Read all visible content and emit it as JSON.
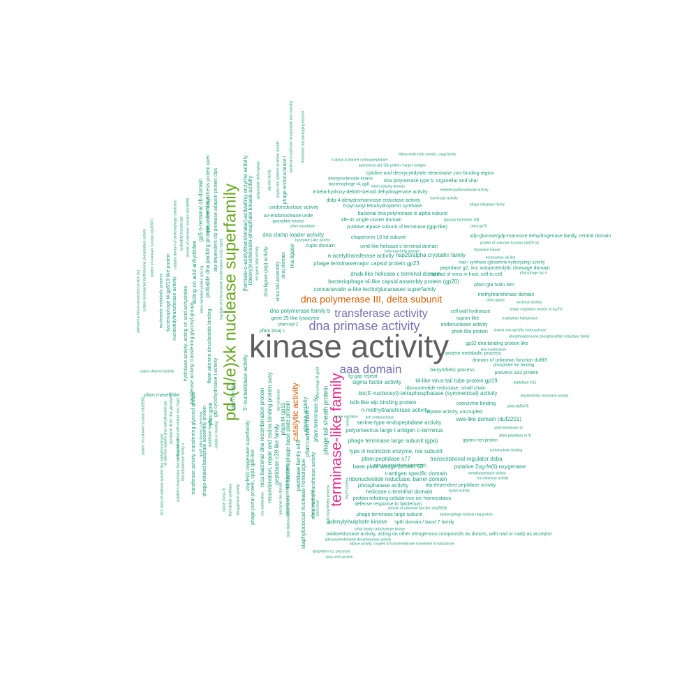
{
  "colors": {
    "background": "#ffffff",
    "gray": "#5f5f5f",
    "green": "#1b9e77",
    "olive": "#66a61e",
    "orange": "#d95f02",
    "purple": "#7570b3",
    "magenta": "#e7298a"
  },
  "words": [
    {
      "text": "kinase activity",
      "color": "gray"
    },
    {
      "text": "pd-(d/e)xk nuclease superfamily",
      "color": "olive"
    },
    {
      "text": "terminase-like family",
      "color": "magenta"
    },
    {
      "text": "dna primase activity",
      "color": "purple"
    },
    {
      "text": "transferase activity",
      "color": "purple"
    },
    {
      "text": "aaa domain",
      "color": "purple"
    },
    {
      "text": "dna polymerase III, delta subunit",
      "color": "orange"
    },
    {
      "text": "catalytic activity",
      "color": "orange"
    },
    {
      "text": "ribbon-helix-helix protein, copg family",
      "color": "green"
    },
    {
      "text": "d-alanyl-d-alanine carboxypeptidase",
      "color": "green"
    },
    {
      "text": "adenovirus eb1 55k protein / large t-antigen",
      "color": "green"
    },
    {
      "text": "cytidine and deoxycytidylate deaminase zinc-binding region",
      "color": "green"
    },
    {
      "text": "deoxynucleoside kinase",
      "color": "green"
    },
    {
      "text": "dna polymerase type b, organellar and viral",
      "color": "green"
    },
    {
      "text": "intein splicing domain",
      "color": "green"
    },
    {
      "text": "bacteriophage t4, gp8",
      "color": "green"
    },
    {
      "text": "3-beta-hydroxy-delta5-steroid dehydrogenase activity",
      "color": "green"
    },
    {
      "text": "endodeoxyribonuclease activity",
      "color": "green"
    },
    {
      "text": "dtdp-4-dehydrorhamnose reductase activity",
      "color": "green"
    },
    {
      "text": "isomerase activity",
      "color": "green"
    },
    {
      "text": "6-pyruvoyl tetrahydropterin synthase",
      "color": "green"
    },
    {
      "text": "phage integrase family",
      "color": "green"
    },
    {
      "text": "oxidoreductase activity",
      "color": "green"
    },
    {
      "text": "bacterial dna polymerase iii alpha subunit",
      "color": "green"
    },
    {
      "text": "uv-endonuclease uvde",
      "color": "green"
    },
    {
      "text": "4fe-4s single cluster domain",
      "color": "green"
    },
    {
      "text": "glycosyl hydrolase 108",
      "color": "green"
    },
    {
      "text": "guanylate kinase",
      "color": "green"
    },
    {
      "text": "pfam:muraldase",
      "color": "green"
    },
    {
      "text": "putative atpase subunit of terminase (gpp-like)",
      "color": "green"
    },
    {
      "text": "pfam:gp70",
      "color": "green"
    },
    {
      "text": "dna clamp loader activity",
      "color": "green"
    },
    {
      "text": "chaperonin 10 kd subunit",
      "color": "green"
    },
    {
      "text": "udp-glucose/gdp-mannose dehydrogenase family, central domain",
      "color": "green"
    },
    {
      "text": "baseplate j-like protein",
      "color": "green"
    },
    {
      "text": "protein of unknown function (duf2514)",
      "color": "green"
    },
    {
      "text": "cupin domain",
      "color": "green"
    },
    {
      "text": "uvrd-like helicase c-terminal domain",
      "color": "green"
    },
    {
      "text": "thymidine kinase",
      "color": "green"
    },
    {
      "text": "helix-turn-helix domain",
      "color": "green"
    },
    {
      "text": "n-acetyltransferase activity",
      "color": "green"
    },
    {
      "text": "hsp20/alpha crystallin family",
      "color": "green"
    },
    {
      "text": "herpesvirus ul6 like",
      "color": "green"
    },
    {
      "text": "phage terminasemajor capsid protein gp23",
      "color": "green"
    },
    {
      "text": "nad+ synthase (glutamine-hydrolyzing) activity",
      "color": "green"
    },
    {
      "text": "peptidase g2, imc autoproteolytic cleavage domain",
      "color": "green"
    },
    {
      "text": "dnab-like helicase c terminal domain",
      "color": "green"
    },
    {
      "text": "spread of virus in host, cell to cell",
      "color": "green"
    },
    {
      "text": "pfam:phage tac 4",
      "color": "green"
    },
    {
      "text": "bacteriophage t4-like capsid assembly protein (gp20)",
      "color": "green"
    },
    {
      "text": "pfam:gta holin 3tm",
      "color": "green"
    },
    {
      "text": "concanavalin a-like lectin/glucanases superfamily",
      "color": "green"
    },
    {
      "text": "methyltransferase domain",
      "color": "green"
    },
    {
      "text": "pfam:apase",
      "color": "green"
    },
    {
      "text": "nuclease activity",
      "color": "green"
    },
    {
      "text": "cell wall hydrolase",
      "color": "green"
    },
    {
      "text": "phage regulatory protein cii (cp76)",
      "color": "green"
    },
    {
      "text": "dna polymerase family b",
      "color": "green"
    },
    {
      "text": "toprim-like",
      "color": "green"
    },
    {
      "text": "tryptophan halogenase",
      "color": "green"
    },
    {
      "text": "gene 25-like lysozyme",
      "color": "green"
    },
    {
      "text": "endonuclease activity",
      "color": "green"
    },
    {
      "text": "pfam:wyl 2",
      "color": "green"
    },
    {
      "text": "phoh-like protein",
      "color": "green"
    },
    {
      "text": "dnama non-specific endonuclease",
      "color": "green"
    },
    {
      "text": "pfam:dnaj c",
      "color": "green"
    },
    {
      "text": "phosphoadenosine phosphosulfate reductase family",
      "color": "green"
    },
    {
      "text": "gp32 dna binding protein like",
      "color": "green"
    },
    {
      "text": "dna modification",
      "color": "green"
    },
    {
      "text": "protein metabolic process",
      "color": "green"
    },
    {
      "text": "domain of unknown function duf83",
      "color": "green"
    },
    {
      "text": "phosphate ion binding",
      "color": "green"
    },
    {
      "text": "biosynthetic process",
      "color": "green"
    },
    {
      "text": "poxvirus a32 protein",
      "color": "green"
    },
    {
      "text": "fg-gap repeat",
      "color": "green"
    },
    {
      "text": "sigma factor activity",
      "color": "green"
    },
    {
      "text": "t4-like virus tail tube protein gp19",
      "color": "green"
    },
    {
      "text": "peptidase m15",
      "color": "green"
    },
    {
      "text": "ribonucleotide reductase, small chain",
      "color": "green"
    },
    {
      "text": "bis(5'-nucleosyl)-tetraphosphatase (symmetrical) activity",
      "color": "green"
    },
    {
      "text": "dihydrofolate reductase activity",
      "color": "green"
    },
    {
      "text": "lstb-like atp binding protein",
      "color": "green"
    },
    {
      "text": "coenzyme binding",
      "color": "green"
    },
    {
      "text": "pfam:duf5478",
      "color": "green"
    },
    {
      "text": "n-methyltransferase activity",
      "color": "green"
    },
    {
      "text": "atpase activity, uncoupled",
      "color": "green"
    },
    {
      "text": "heme oxidation",
      "color": "green"
    },
    {
      "text": "hnh endonuclease",
      "color": "green"
    },
    {
      "text": "serine-type endopeptidase activity",
      "color": "green"
    },
    {
      "text": "vwa-like domain (duf2201)",
      "color": "green"
    },
    {
      "text": "pfam:terminase 3c",
      "color": "green"
    },
    {
      "text": "polyomavirus large t antigen c-terminus",
      "color": "green"
    },
    {
      "text": "pfam:peptidase m78",
      "color": "green"
    },
    {
      "text": "phage terminase large subunit (gpa)",
      "color": "green"
    },
    {
      "text": "glycine rich protein",
      "color": "green"
    },
    {
      "text": "carbohydrate binding",
      "color": "green"
    },
    {
      "text": "type iii restriction enzyme, res subunit",
      "color": "green"
    },
    {
      "text": "pfam:peptidase s77",
      "color": "green"
    },
    {
      "text": "transcriptional regulator dsba",
      "color": "green"
    },
    {
      "text": "base plate wedge protein 53",
      "color": "green"
    },
    {
      "text": "zonular occludens toxin (zot)",
      "color": "green"
    },
    {
      "text": "putative 2og-fe(ii) oxygenase",
      "color": "green"
    },
    {
      "text": "t-antigen specific domain",
      "color": "green"
    },
    {
      "text": "metallopeptidase activity",
      "color": "green"
    },
    {
      "text": "ribonucleotide reductase, barrel domain",
      "color": "green"
    },
    {
      "text": "recombinase activity",
      "color": "green"
    },
    {
      "text": "phosphatase activity",
      "color": "green"
    },
    {
      "text": "atp-dependent peptidase activity",
      "color": "green"
    },
    {
      "text": "helicase c-terminal domain",
      "color": "green"
    },
    {
      "text": "ligase activity",
      "color": "green"
    },
    {
      "text": "protein refolding cellular iron ion homeostasis",
      "color": "green"
    },
    {
      "text": "defense response to bacterium",
      "color": "green"
    },
    {
      "text": "domain of unknown function (duf2828)",
      "color": "green"
    },
    {
      "text": "phage terminase large subunit",
      "color": "green"
    },
    {
      "text": "bacteriophage lambda ring protein",
      "color": "green"
    },
    {
      "text": "adenylylsulphate kinase",
      "color": "green"
    },
    {
      "text": "spth domain / band 7 family",
      "color": "green"
    },
    {
      "text": "prfab family carbohydrate kinase",
      "color": "green"
    },
    {
      "text": "oxidoreductase activity, acting on other nitrogenous compounds as donors, with nad or nadp as acceptor",
      "color": "green"
    },
    {
      "text": "adenosylmethionine decarboxylase activity",
      "color": "green"
    },
    {
      "text": "atpase activity, coupled to transmembrane movement of substances",
      "color": "green"
    },
    {
      "text": "lipoprotein rz1 precursor",
      "color": "green"
    },
    {
      "text": "virus neck protein",
      "color": "green"
    },
    {
      "text": "polypeptide deformylase",
      "color": "green"
    },
    {
      "text": "atp-like family",
      "color": "green"
    },
    {
      "text": "papain-like cysteine protease avrrpt2",
      "color": "green"
    },
    {
      "text": "phage endonuclease i",
      "color": "green"
    },
    {
      "text": "bacterial transferase hexapeptide (six repeats)",
      "color": "green"
    },
    {
      "text": "terminase dna packaging enzyme",
      "color": "green"
    },
    {
      "text": "[formate-c-acetyltransferase]-activating enzyme activity",
      "color": "green"
    },
    {
      "text": "(deoxy)nucleoside-phosphate kinase activity",
      "color": "green"
    },
    {
      "text": "rna ligase",
      "color": "green"
    },
    {
      "text": "dna ligase (atp) activity",
      "color": "green"
    },
    {
      "text": "virus tail assembly",
      "color": "green"
    },
    {
      "text": "dnaj domain",
      "color": "green"
    },
    {
      "text": "rna ligase (atp) activity",
      "color": "green"
    },
    {
      "text": "queuosine biosynthesis protein quec",
      "color": "green"
    },
    {
      "text": "atp-dependent clp protease adaptor protein clps",
      "color": "green"
    },
    {
      "text": "regulator of chromosome condensation (rcc1) repeat",
      "color": "green"
    },
    {
      "text": "gp5 n-terminal ob domain",
      "color": "green"
    },
    {
      "text": "probable dna packing protein, c-terminus",
      "color": "green"
    },
    {
      "text": "acting on acid anhydrides",
      "color": "green"
    },
    {
      "text": "domain of unknown function (duf1599)",
      "color": "green"
    },
    {
      "text": "nucleotidyl transferase",
      "color": "green"
    },
    {
      "text": "catalytic domain of bacteriophage endolysine",
      "color": "green"
    },
    {
      "text": "intein-mediated protein splicing",
      "color": "green"
    },
    {
      "text": "bacteriophage t4 gp9/10-like protein",
      "color": "green"
    },
    {
      "text": "nucleotidyltransferase activity",
      "color": "green"
    },
    {
      "text": "nucleoside metabolic process",
      "color": "green"
    },
    {
      "text": "flavin adenine dinucleotide binding",
      "color": "green"
    },
    {
      "text": "hydrolase activity, acting on acid anhydrides",
      "color": "green"
    },
    {
      "text": "transferase activity, transferring glycosyl groups",
      "color": "green"
    },
    {
      "text": "protein of unknown function (duf3307)",
      "color": "green"
    },
    {
      "text": "protein-tyrosine/serine/threonine phosphatase activity",
      "color": "green"
    },
    {
      "text": "adenovirus hexon-associated protein (ix)",
      "color": "green"
    },
    {
      "text": "cation channel activity",
      "color": "green"
    },
    {
      "text": "gtp cyclohydrolase i activity",
      "color": "green"
    },
    {
      "text": "pfam:gp68",
      "color": "green"
    },
    {
      "text": "phage-related baseplate assembly protein",
      "color": "green"
    },
    {
      "text": "subtilase family",
      "color": "green"
    },
    {
      "text": "cobalt ion binding",
      "color": "green"
    },
    {
      "text": "transferase activity, transferring glycosyl groups",
      "color": "green"
    },
    {
      "text": "dna polymerase family a",
      "color": "green"
    },
    {
      "text": "pfam:rnaseh like",
      "color": "green"
    },
    {
      "text": "pyridoxine dimer dna glycosylase",
      "color": "green"
    },
    {
      "text": "n6 adenine-specific dna methyltransferase",
      "color": "green"
    },
    {
      "text": "prokaryotic dksa/traR c4-type zinc finger",
      "color": "green"
    },
    {
      "text": "putative transposase dna-binding domain",
      "color": "green"
    },
    {
      "text": "protein of unknown function (duf3268)",
      "color": "green"
    },
    {
      "text": "d12 class n6 adenine-specific dna methyltransferase",
      "color": "green"
    },
    {
      "text": "qcal2 alkb domain, c-terminal",
      "color": "green"
    },
    {
      "text": "5'-nucleotidase activity",
      "color": "green"
    },
    {
      "text": "2og-fe(ii) oxygenase superfamily",
      "color": "green"
    },
    {
      "text": "phage portal protein, spp1 gp6-like",
      "color": "green"
    },
    {
      "text": "pfam:sm like",
      "color": "green"
    },
    {
      "text": "dioxygenase activity",
      "color": "green"
    },
    {
      "text": "thymidylate synthase",
      "color": "green"
    },
    {
      "text": "lipase (class 3)",
      "color": "green"
    },
    {
      "text": "reca bacterial dna recombination protein",
      "color": "green"
    },
    {
      "text": "rna methylation",
      "color": "green"
    },
    {
      "text": "recombination, repair and ssdna binding protein uvsy",
      "color": "green"
    },
    {
      "text": "peptidase c39 like family",
      "color": "green"
    },
    {
      "text": "pfam:t4 gp15",
      "color": "green"
    },
    {
      "text": "tss hd domain",
      "color": "green"
    },
    {
      "text": "t4 bacteriophage base plate protein",
      "color": "green"
    },
    {
      "text": "lysozyme like domain",
      "color": "green"
    },
    {
      "text": "peptidase family s49",
      "color": "green"
    },
    {
      "text": "protein of unknown function",
      "color": "green"
    },
    {
      "text": "dutp diphosphatase activity",
      "color": "green"
    },
    {
      "text": "staphylococcal nuclease homologue",
      "color": "green"
    },
    {
      "text": "atpase activity",
      "color": "green"
    },
    {
      "text": "pfam:terminase 6c",
      "color": "green"
    },
    {
      "text": "pfam:carbam trans c",
      "color": "green"
    },
    {
      "text": "phage tail sheath protein",
      "color": "green"
    },
    {
      "text": "rnma methyltransferase activity",
      "color": "green"
    },
    {
      "text": "pfam:phage t4 gp19",
      "color": "green"
    },
    {
      "text": "dtdp biosynthetic process",
      "color": "green"
    },
    {
      "text": "pfam:mog an bind",
      "color": "green"
    },
    {
      "text": "hsp70 protein",
      "color": "green"
    },
    {
      "text": "pfam:pcas",
      "color": "green"
    },
    {
      "text": "redox",
      "color": "green"
    }
  ]
}
